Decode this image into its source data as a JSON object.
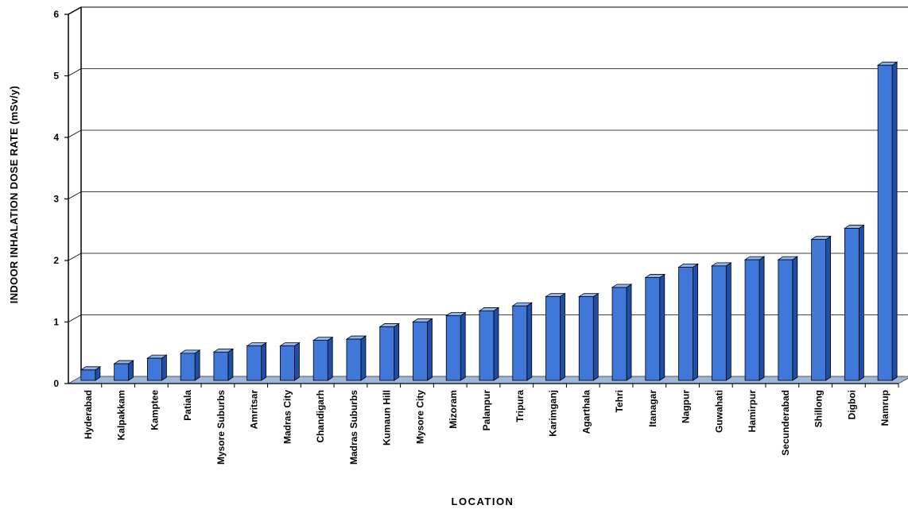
{
  "chart_data": {
    "type": "bar",
    "title": "",
    "xlabel": "LOCATION",
    "ylabel": "INDOOR INHALATION DOSE RATE (mSv/y)",
    "ylim": [
      0,
      6
    ],
    "yticks": [
      "0",
      "1",
      "2",
      "3",
      "4",
      "5",
      "6"
    ],
    "grid": true,
    "categories": [
      "Hyderabad",
      "Kalpakkam",
      "Kamptee",
      "Patiala",
      "Mysore Suburbs",
      "Amritsar",
      "Madras City",
      "Chandigarh",
      "Madras Suburbs",
      "Kumaun Hill",
      "Mysore City",
      "Mizoram",
      "Palanpur",
      "Tripura",
      "Karimganj",
      "Agarthala",
      "Tehri",
      "Itanagar",
      "Nagpur",
      "Guwahati",
      "Hamirpur",
      "Secunderabad",
      "Shillong",
      "Digboi",
      "Namrup"
    ],
    "values": [
      0.17,
      0.27,
      0.36,
      0.44,
      0.46,
      0.56,
      0.56,
      0.65,
      0.67,
      0.87,
      0.95,
      1.05,
      1.13,
      1.21,
      1.36,
      1.36,
      1.51,
      1.67,
      1.84,
      1.86,
      1.96,
      1.96,
      2.29,
      2.47,
      5.12
    ],
    "colors": {
      "bar_front": "#3f78d8",
      "bar_top": "#8fb4ee",
      "bar_side": "#1d4fa8",
      "floor": "#9db6da"
    }
  }
}
